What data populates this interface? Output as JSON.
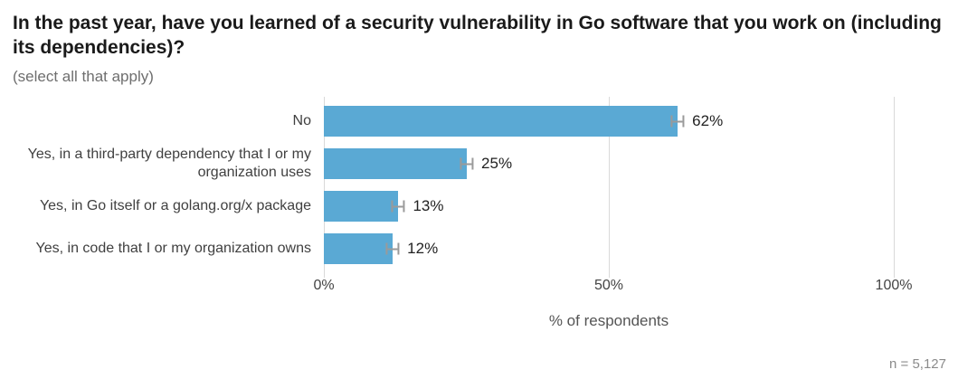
{
  "title": "In the past year, have you learned of a security vulnerability in Go software that you work on (including its dependencies)?",
  "subtitle": "(select all that apply)",
  "footnote": "n =  5,127",
  "colors": {
    "bar": "#5aa9d4",
    "grid": "#d9d9d9",
    "error_bar": "#9a9a9a",
    "title_text": "#1a1a1a",
    "muted_text": "#6e6e6e"
  },
  "chart_data": {
    "type": "bar",
    "orientation": "horizontal",
    "title": "In the past year, have you learned of a security vulnerability in Go software that you work on (including its dependencies)?",
    "subtitle": "(select all that apply)",
    "categories": [
      "No",
      "Yes, in a third-party dependency that I or my organization uses",
      "Yes, in Go itself or a golang.org/x package",
      "Yes, in code that I or my organization owns"
    ],
    "values": [
      62,
      25,
      13,
      12
    ],
    "value_labels": [
      "62%",
      "25%",
      "13%",
      "12%"
    ],
    "error_margins_pct": [
      1.2,
      1.2,
      1.2,
      1.2
    ],
    "xlabel": "% of respondents",
    "xlim": [
      0,
      100
    ],
    "x_ticks": [
      {
        "value": 0,
        "label": "0%"
      },
      {
        "value": 50,
        "label": "50%"
      },
      {
        "value": 100,
        "label": "100%"
      }
    ],
    "grid": true,
    "legend": false,
    "sample_size": "n =  5,127"
  }
}
